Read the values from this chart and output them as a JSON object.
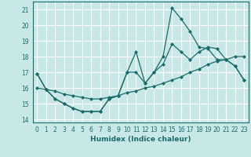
{
  "xlabel": "Humidex (Indice chaleur)",
  "ylabel": "",
  "xlim": [
    -0.5,
    23.5
  ],
  "ylim": [
    13.8,
    21.5
  ],
  "yticks": [
    14,
    15,
    16,
    17,
    18,
    19,
    20,
    21
  ],
  "xticks": [
    0,
    1,
    2,
    3,
    4,
    5,
    6,
    7,
    8,
    9,
    10,
    11,
    12,
    13,
    14,
    15,
    16,
    17,
    18,
    19,
    20,
    21,
    22,
    23
  ],
  "bg_color": "#c8e8e8",
  "grid_color": "#ffffff",
  "line_color": "#1a6b6b",
  "series": [
    {
      "x": [
        0,
        1,
        2,
        3,
        4,
        5,
        6,
        7,
        8,
        9,
        10,
        11,
        12,
        13,
        14,
        15,
        16,
        17,
        18,
        19,
        20,
        21,
        22,
        23
      ],
      "y": [
        16.9,
        15.9,
        15.3,
        15.0,
        14.7,
        14.5,
        14.5,
        14.5,
        15.3,
        15.5,
        17.0,
        18.3,
        16.3,
        17.0,
        18.0,
        21.1,
        20.4,
        19.6,
        18.6,
        18.5,
        17.8,
        17.8,
        17.4,
        16.5
      ]
    },
    {
      "x": [
        0,
        1,
        2,
        3,
        4,
        5,
        6,
        7,
        8,
        9,
        10,
        11,
        12,
        13,
        14,
        15,
        16,
        17,
        18,
        19,
        20,
        21,
        22,
        23
      ],
      "y": [
        16.9,
        15.9,
        15.3,
        15.0,
        14.7,
        14.5,
        14.5,
        14.5,
        15.3,
        15.5,
        17.0,
        17.0,
        16.3,
        17.0,
        17.5,
        18.8,
        18.3,
        17.8,
        18.3,
        18.6,
        18.5,
        17.8,
        17.4,
        16.5
      ]
    },
    {
      "x": [
        0,
        1,
        2,
        3,
        4,
        5,
        6,
        7,
        8,
        9,
        10,
        11,
        12,
        13,
        14,
        15,
        16,
        17,
        18,
        19,
        20,
        21,
        22,
        23
      ],
      "y": [
        16.0,
        15.9,
        15.8,
        15.6,
        15.5,
        15.4,
        15.3,
        15.3,
        15.4,
        15.5,
        15.7,
        15.8,
        16.0,
        16.1,
        16.3,
        16.5,
        16.7,
        17.0,
        17.2,
        17.5,
        17.7,
        17.8,
        18.0,
        18.0
      ]
    }
  ]
}
